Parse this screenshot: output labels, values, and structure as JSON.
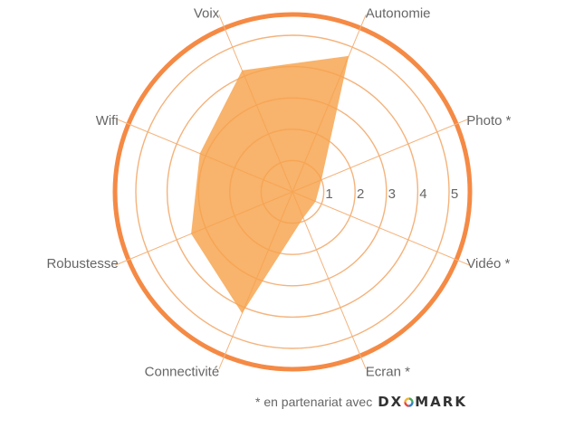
{
  "chart_data": {
    "type": "radar",
    "axes": [
      "Voix",
      "Autonomie",
      "Photo *",
      "Vidéo *",
      "Ecran *",
      "Connectivité",
      "Robustesse",
      "Wifi"
    ],
    "values": [
      4.2,
      4.7,
      1.0,
      0.8,
      0.9,
      4.2,
      3.5,
      3.2
    ],
    "scale_max": 5,
    "scale_labels": [
      "1",
      "2",
      "3",
      "4",
      "5"
    ],
    "colors": {
      "fill": "#f7a24c",
      "grid": "#f4b37c",
      "outer_ring": "#f58a45",
      "label_text": "#666666"
    }
  },
  "footnote": {
    "text": "* en partenariat avec",
    "brand_left": "DX",
    "brand_right": "MARK",
    "brand_icon": "dxomark-ring-logo"
  }
}
